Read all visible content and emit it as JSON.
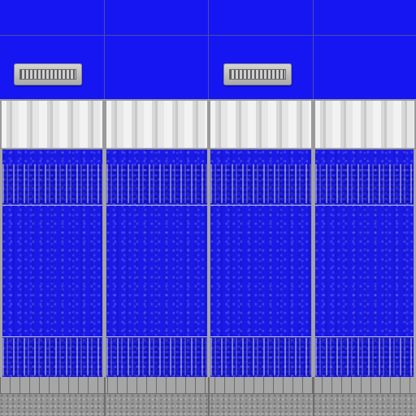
{
  "texture": {
    "colors": {
      "panel_blue": "#1616f2",
      "panel_blue_weathered": "#1a1ae8",
      "stripe_white": "#f2f2f2",
      "frame_grey": "#a4a4ae",
      "curb_grey": "#969696"
    },
    "columns": 4,
    "vents": [
      {
        "icon": "vent-grille-icon",
        "column": 1
      },
      {
        "icon": "vent-grille-icon",
        "column": 3
      }
    ]
  }
}
